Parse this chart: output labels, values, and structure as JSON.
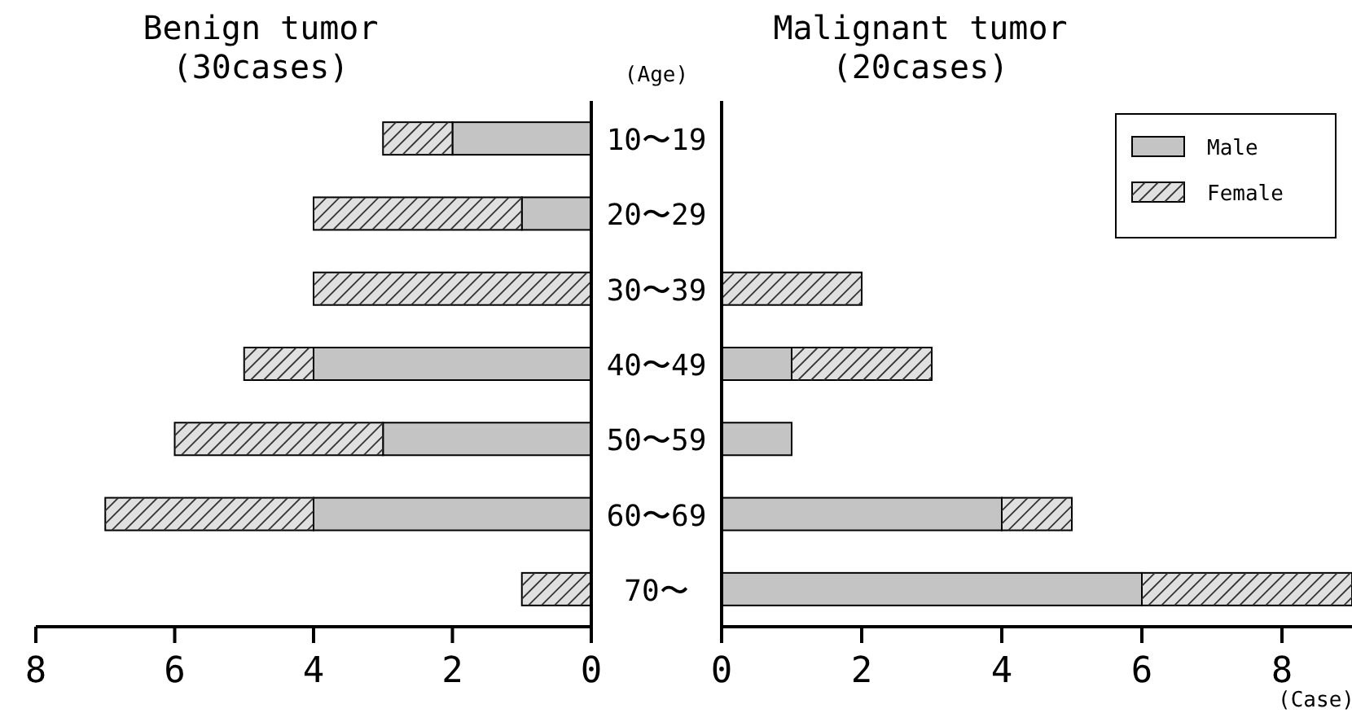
{
  "chart_data": [
    {
      "type": "bar",
      "orientation": "horizontal",
      "stacked": true,
      "title": "Benign tumor",
      "subtitle": "(30cases)",
      "ylabel": "(Age)",
      "categories": [
        "10〜19",
        "20〜29",
        "30〜39",
        "40〜49",
        "50〜59",
        "60〜69",
        "70〜"
      ],
      "series": [
        {
          "color": "#c4c4c4",
          "values": [
            2,
            1,
            0,
            4,
            3,
            4,
            0
          ]
        },
        {
          "color": "#e0e0e0",
          "values": [
            1,
            3,
            4,
            1,
            3,
            3,
            1
          ]
        }
      ],
      "xlim": [
        8,
        0
      ],
      "xticks": [
        8,
        6,
        4,
        2,
        0
      ],
      "tick_labels": "xy",
      "legend": false
    },
    {
      "type": "bar",
      "orientation": "horizontal",
      "stacked": true,
      "title": "Malignant tumor",
      "subtitle": "(20cases)",
      "xlabel": "(Case)",
      "categories": [
        "10〜19",
        "20〜29",
        "30〜39",
        "40〜49",
        "50〜59",
        "60〜69",
        "70〜"
      ],
      "series": [
        {
          "name": "Male",
          "color": "#c4c4c4",
          "values": [
            0,
            0,
            0,
            1,
            1,
            4,
            6
          ]
        },
        {
          "name": "Female",
          "color": "#e0e0e0",
          "values": [
            0,
            0,
            2,
            2,
            0,
            1,
            3
          ]
        }
      ],
      "xlim": [
        0,
        9
      ],
      "xticks": [
        0,
        2,
        4,
        6,
        8
      ],
      "tick_labels": "x",
      "legend": "top right"
    }
  ]
}
